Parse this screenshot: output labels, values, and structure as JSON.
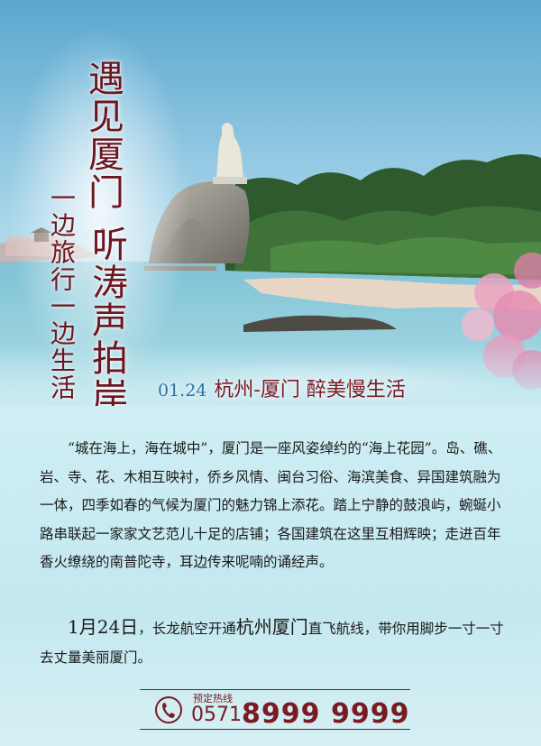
{
  "headline": {
    "title_part1": "遇见厦门·",
    "title_part2": "听涛声拍岸",
    "subtitle": "一边旅行一边生活"
  },
  "tagline": {
    "date": "01.24",
    "text": "杭州-厦门 醉美慢生活"
  },
  "body": {
    "paragraph1": "“城在海上，海在城中”，厦门是一座风姿绰约的“海上花园”。岛、礁、岩、寺、花、木相互映衬，侨乡风情、闽台习俗、海滨美食、异国建筑融为一体，四季如春的气候为厦门的魅力锦上添花。踏上宁静的鼓浪屿，蜿蜒小路串联起一家家文艺范儿十足的店铺；各国建筑在这里互相辉映；走进百年香火缭绕的南普陀寺，耳边传来呢喃的诵经声。",
    "paragraph2_date": "1月24日",
    "paragraph2_a": "，长龙航空开通",
    "paragraph2_route": "杭州厦门",
    "paragraph2_b": "直飞航线，带你用脚步一寸一寸去丈量美丽厦门。"
  },
  "hotline": {
    "label": "预定热线",
    "area_code": "0571",
    "number": "8999 9999",
    "icon": "phone-icon"
  },
  "colors": {
    "accent": "#7a1a22",
    "date_blue": "#2f6fa6",
    "body_bg": "#c9eaf1"
  }
}
